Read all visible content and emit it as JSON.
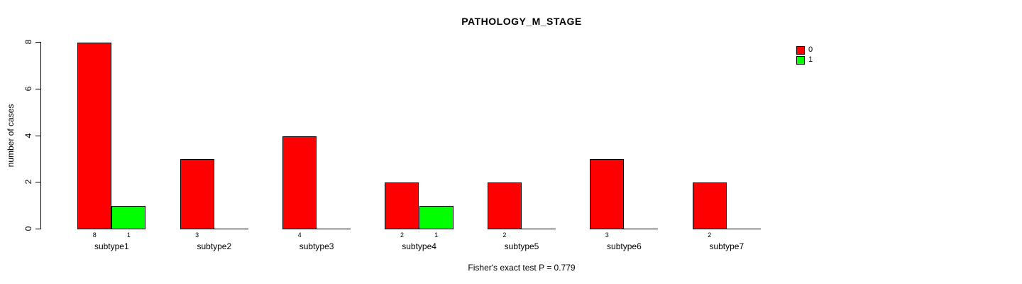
{
  "figure": {
    "background": "#FFFFFF"
  },
  "chart_data": {
    "type": "bar",
    "title": "PATHOLOGY_M_STAGE",
    "xlabel": "",
    "ylabel": "number of cases",
    "categories": [
      "subtype1",
      "subtype2",
      "subtype3",
      "subtype4",
      "subtype5",
      "subtype6",
      "subtype7"
    ],
    "series": [
      {
        "name": "0",
        "color": "#FF0000",
        "values": [
          8,
          3,
          4,
          2,
          2,
          3,
          2
        ]
      },
      {
        "name": "1",
        "color": "#00FF00",
        "values": [
          1,
          0,
          0,
          1,
          0,
          0,
          0
        ]
      }
    ],
    "bar_value_labels_shown_for_nonzero_bars": true,
    "yticks": [
      0,
      2,
      4,
      6,
      8
    ],
    "ylim": [
      0,
      8
    ],
    "grid": false,
    "legend_position": "top-right",
    "bar_border_color": "#000000",
    "axis_color": "#000000",
    "annotation": "Fisher's exact test P = 0.779"
  }
}
